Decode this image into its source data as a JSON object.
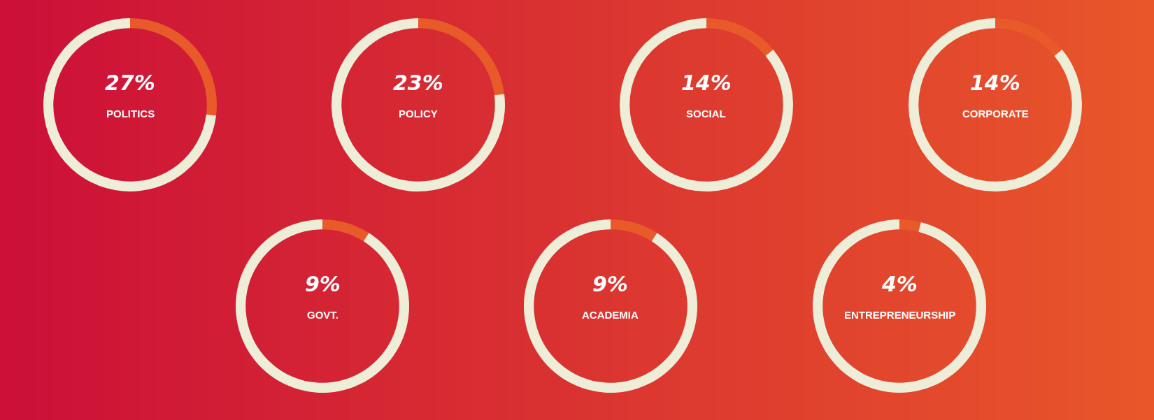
{
  "chart_data": [
    {
      "type": "donut",
      "title": "POLITICS",
      "categories": [
        null,
        null
      ],
      "values": [
        27,
        73
      ],
      "colors": [
        "#e85a2a",
        "#eeeed8"
      ],
      "value_labels": [
        "27%",
        null
      ]
    },
    {
      "type": "donut",
      "title": "POLICY",
      "categories": [
        null,
        null
      ],
      "values": [
        23,
        77
      ],
      "colors": [
        "#e85a2a",
        "#eeeed8"
      ],
      "value_labels": [
        "23%",
        null
      ]
    },
    {
      "type": "donut",
      "title": "SOCIAL",
      "categories": [
        null,
        null
      ],
      "values": [
        14,
        86
      ],
      "colors": [
        "#e85a2a",
        "#eeeed8"
      ],
      "value_labels": [
        "14%",
        null
      ]
    },
    {
      "type": "donut",
      "title": "CORPORATE",
      "categories": [
        null,
        null
      ],
      "values": [
        14,
        86
      ],
      "colors": [
        "#e85a2a",
        "#eeeed8"
      ],
      "value_labels": [
        "14%",
        null
      ]
    },
    {
      "type": "donut",
      "title": "GOVT.",
      "categories": [
        null,
        null
      ],
      "values": [
        9,
        91
      ],
      "colors": [
        "#e85a2a",
        "#eeeed8"
      ],
      "value_labels": [
        "9%",
        null
      ]
    },
    {
      "type": "donut",
      "title": "ACADEMIA",
      "categories": [
        null,
        null
      ],
      "values": [
        9,
        91
      ],
      "colors": [
        "#e85a2a",
        "#eeeed8"
      ],
      "value_labels": [
        "9%",
        null
      ]
    },
    {
      "type": "donut",
      "title": "ENTREPRENEURSHIP",
      "categories": [
        null,
        null
      ],
      "values": [
        4,
        96
      ],
      "colors": [
        "#e85a2a",
        "#eeeed8"
      ],
      "value_labels": [
        "4%",
        null
      ]
    }
  ]
}
